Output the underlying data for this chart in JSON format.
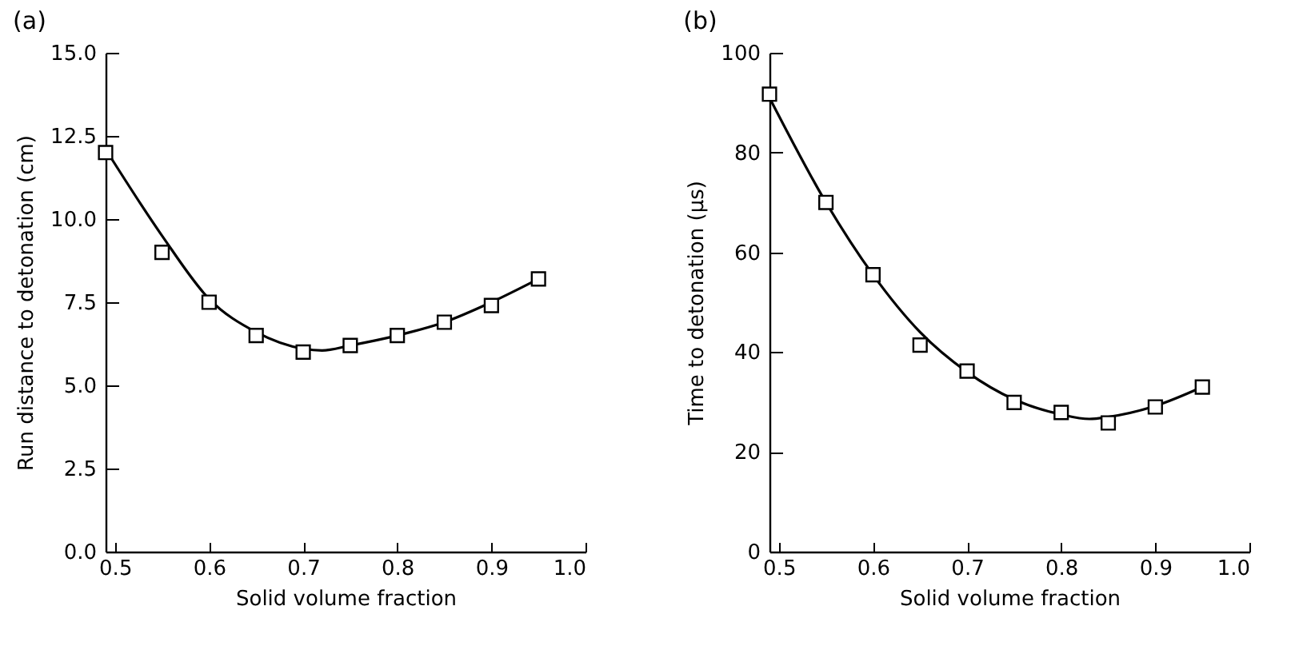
{
  "chart_data": [
    {
      "type": "scatter",
      "title": "(a)",
      "xlabel": "Solid volume fraction",
      "ylabel": "Run distance to detonation (cm)",
      "xlim": [
        0.49,
        1.0
      ],
      "xticks": [
        {
          "value": 0.5,
          "label": "0.5"
        },
        {
          "value": 0.6,
          "label": "0.6"
        },
        {
          "value": 0.7,
          "label": "0.7"
        },
        {
          "value": 0.8,
          "label": "0.8"
        },
        {
          "value": 0.9,
          "label": "0.9"
        },
        {
          "value": 1.0,
          "label": "1.0"
        }
      ],
      "ylim": [
        0,
        15
      ],
      "yticks": [
        {
          "value": 0,
          "label": "0.0"
        },
        {
          "value": 2.5,
          "label": "2.5"
        },
        {
          "value": 5,
          "label": "5.0"
        },
        {
          "value": 7.5,
          "label": "7.5"
        },
        {
          "value": 10,
          "label": "10.0"
        },
        {
          "value": 12.5,
          "label": "12.5"
        },
        {
          "value": 15,
          "label": "15.0"
        }
      ],
      "grid": false,
      "marker": "square",
      "series": [
        {
          "type": "line",
          "color": "#000000",
          "marker": "none",
          "x": [
            0.49,
            0.55,
            0.6,
            0.65,
            0.7,
            0.72,
            0.75,
            0.8,
            0.85,
            0.9,
            0.95
          ],
          "values": [
            12.1,
            9.5,
            7.6,
            6.6,
            6.1,
            6.05,
            6.2,
            6.5,
            6.9,
            7.5,
            8.2
          ]
        },
        {
          "type": "scatter",
          "color": "#000000",
          "x": [
            0.49,
            0.55,
            0.6,
            0.65,
            0.7,
            0.75,
            0.8,
            0.85,
            0.9,
            0.95
          ],
          "values": [
            12.0,
            9.0,
            7.5,
            6.5,
            6.0,
            6.2,
            6.5,
            6.9,
            7.4,
            8.2
          ]
        }
      ]
    },
    {
      "type": "scatter",
      "title": "(b)",
      "xlabel": "Solid volume fraction",
      "ylabel": "Time to detonation (µs)",
      "xlim": [
        0.49,
        1.0
      ],
      "xticks": [
        {
          "value": 0.5,
          "label": "0.5"
        },
        {
          "value": 0.6,
          "label": "0.6"
        },
        {
          "value": 0.7,
          "label": "0.7"
        },
        {
          "value": 0.8,
          "label": "0.8"
        },
        {
          "value": 0.9,
          "label": "0.9"
        },
        {
          "value": 1.0,
          "label": "1.0"
        }
      ],
      "ylim": [
        0,
        100
      ],
      "yticks": [
        0,
        20,
        40,
        60,
        80,
        100
      ],
      "grid": false,
      "marker": "square",
      "series": [
        {
          "type": "line",
          "color": "#000000",
          "marker": "none",
          "x": [
            0.49,
            0.55,
            0.6,
            0.65,
            0.7,
            0.75,
            0.8,
            0.83,
            0.85,
            0.9,
            0.95
          ],
          "values": [
            91,
            70,
            55.5,
            44,
            36,
            30.5,
            27.5,
            26.6,
            27,
            29.2,
            33
          ]
        },
        {
          "type": "scatter",
          "color": "#000000",
          "x": [
            0.49,
            0.55,
            0.6,
            0.65,
            0.7,
            0.75,
            0.8,
            0.85,
            0.9,
            0.95
          ],
          "values": [
            91.7,
            70,
            55.5,
            41.4,
            36.2,
            29.9,
            27.9,
            25.8,
            29,
            33
          ]
        }
      ]
    }
  ]
}
